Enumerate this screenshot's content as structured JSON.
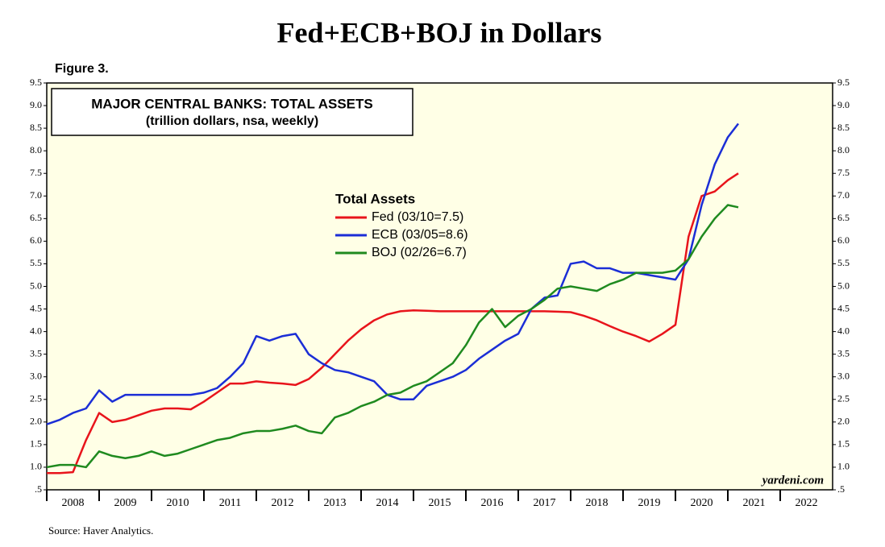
{
  "chart_data": {
    "type": "line",
    "title": "Fed+ECB+BOJ in Dollars",
    "figure_label": "Figure 3.",
    "box_title": "MAJOR CENTRAL BANKS: TOTAL ASSETS",
    "box_subtitle": "(trillion dollars, nsa, weekly)",
    "legend_title": "Total Assets",
    "watermark": "yardeni.com",
    "source": "Source: Haver Analytics.",
    "background": "#ffffe6",
    "x": [
      2008,
      2008.25,
      2008.5,
      2008.75,
      2009,
      2009.25,
      2009.5,
      2009.75,
      2010,
      2010.25,
      2010.5,
      2010.75,
      2011,
      2011.25,
      2011.5,
      2011.75,
      2012,
      2012.25,
      2012.5,
      2012.75,
      2013,
      2013.25,
      2013.5,
      2013.75,
      2014,
      2014.25,
      2014.5,
      2014.75,
      2015,
      2015.25,
      2015.5,
      2015.75,
      2016,
      2016.25,
      2016.5,
      2016.75,
      2017,
      2017.25,
      2017.5,
      2017.75,
      2018,
      2018.25,
      2018.5,
      2018.75,
      2019,
      2019.25,
      2019.5,
      2019.75,
      2020,
      2020.25,
      2020.5,
      2020.75,
      2021,
      2021.2
    ],
    "series": [
      {
        "name": "Fed (03/10=7.5)",
        "color": "#e8141b",
        "values": [
          0.87,
          0.87,
          0.89,
          1.6,
          2.2,
          2.0,
          2.05,
          2.15,
          2.25,
          2.3,
          2.3,
          2.28,
          2.45,
          2.65,
          2.85,
          2.85,
          2.9,
          2.87,
          2.85,
          2.82,
          2.95,
          3.2,
          3.5,
          3.8,
          4.05,
          4.25,
          4.38,
          4.45,
          4.47,
          4.46,
          4.45,
          4.45,
          4.45,
          4.45,
          4.45,
          4.45,
          4.45,
          4.45,
          4.45,
          4.44,
          4.43,
          4.35,
          4.25,
          4.12,
          4.0,
          3.9,
          3.78,
          3.95,
          4.15,
          6.1,
          7.0,
          7.1,
          7.35,
          7.5
        ]
      },
      {
        "name": "ECB (03/05=8.6)",
        "color": "#1b2ed6",
        "values": [
          1.95,
          2.05,
          2.2,
          2.3,
          2.7,
          2.45,
          2.6,
          2.6,
          2.6,
          2.6,
          2.6,
          2.6,
          2.65,
          2.75,
          3.0,
          3.3,
          3.9,
          3.8,
          3.9,
          3.95,
          3.5,
          3.3,
          3.15,
          3.1,
          3.0,
          2.9,
          2.6,
          2.5,
          2.5,
          2.8,
          2.9,
          3.0,
          3.15,
          3.4,
          3.6,
          3.8,
          3.95,
          4.5,
          4.75,
          4.8,
          5.5,
          5.55,
          5.4,
          5.4,
          5.3,
          5.3,
          5.25,
          5.2,
          5.15,
          5.6,
          6.8,
          7.7,
          8.3,
          8.6
        ]
      },
      {
        "name": "BOJ (02/26=6.7)",
        "color": "#1f8a1f",
        "values": [
          1.0,
          1.05,
          1.05,
          1.0,
          1.35,
          1.25,
          1.2,
          1.25,
          1.35,
          1.25,
          1.3,
          1.4,
          1.5,
          1.6,
          1.65,
          1.75,
          1.8,
          1.8,
          1.85,
          1.92,
          1.8,
          1.75,
          2.1,
          2.2,
          2.35,
          2.45,
          2.6,
          2.65,
          2.8,
          2.9,
          3.1,
          3.3,
          3.7,
          4.2,
          4.5,
          4.1,
          4.35,
          4.5,
          4.7,
          4.95,
          5.0,
          4.95,
          4.9,
          5.05,
          5.15,
          5.3,
          5.3,
          5.3,
          5.35,
          5.6,
          6.1,
          6.5,
          6.8,
          6.75
        ]
      }
    ],
    "xlim": [
      2008,
      2023
    ],
    "xticks": [
      2008,
      2009,
      2010,
      2011,
      2012,
      2013,
      2014,
      2015,
      2016,
      2017,
      2018,
      2019,
      2020,
      2021,
      2022
    ],
    "ylim": [
      0.5,
      9.5
    ],
    "yticks": [
      {
        "value": 0.5,
        "label": ".5"
      },
      {
        "value": 1,
        "label": "1.0"
      },
      1.5,
      {
        "value": 2,
        "label": "2.0"
      },
      2.5,
      {
        "value": 3,
        "label": "3.0"
      },
      3.5,
      {
        "value": 4,
        "label": "4.0"
      },
      4.5,
      {
        "value": 5,
        "label": "5.0"
      },
      5.5,
      {
        "value": 6,
        "label": "6.0"
      },
      6.5,
      {
        "value": 7,
        "label": "7.0"
      },
      7.5,
      {
        "value": 8,
        "label": "8.0"
      },
      8.5,
      {
        "value": 9,
        "label": "9.0"
      },
      9.5
    ]
  }
}
